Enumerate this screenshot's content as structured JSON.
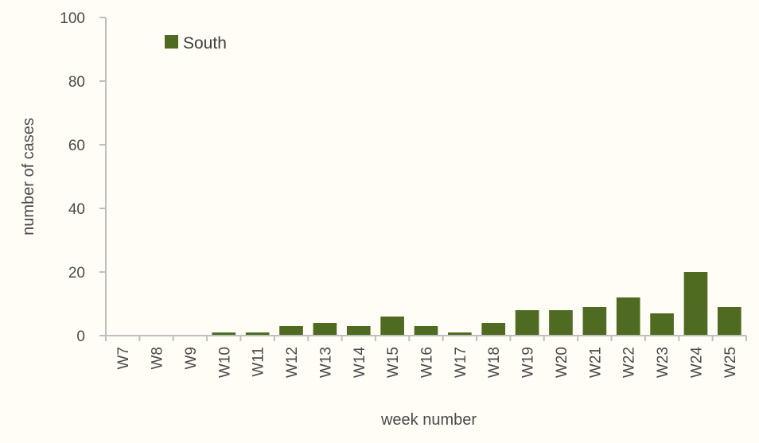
{
  "chart_data": {
    "type": "bar",
    "categories": [
      "W7",
      "W8",
      "W9",
      "W10",
      "W11",
      "W12",
      "W13",
      "W14",
      "W15",
      "W16",
      "W17",
      "W18",
      "W19",
      "W20",
      "W21",
      "W22",
      "W23",
      "W24",
      "W25"
    ],
    "series": [
      {
        "name": "South",
        "color": "#4f6b21",
        "values": [
          0,
          0,
          0,
          1,
          1,
          3,
          4,
          3,
          6,
          3,
          1,
          4,
          8,
          8,
          9,
          12,
          7,
          20,
          9
        ]
      }
    ],
    "title": "",
    "xlabel": "week number",
    "ylabel": "number of cases",
    "ylim": [
      0,
      100
    ],
    "yticks": [
      "0",
      "20",
      "40",
      "60",
      "80",
      "100"
    ],
    "grid": false,
    "legend_position": "top-left"
  }
}
